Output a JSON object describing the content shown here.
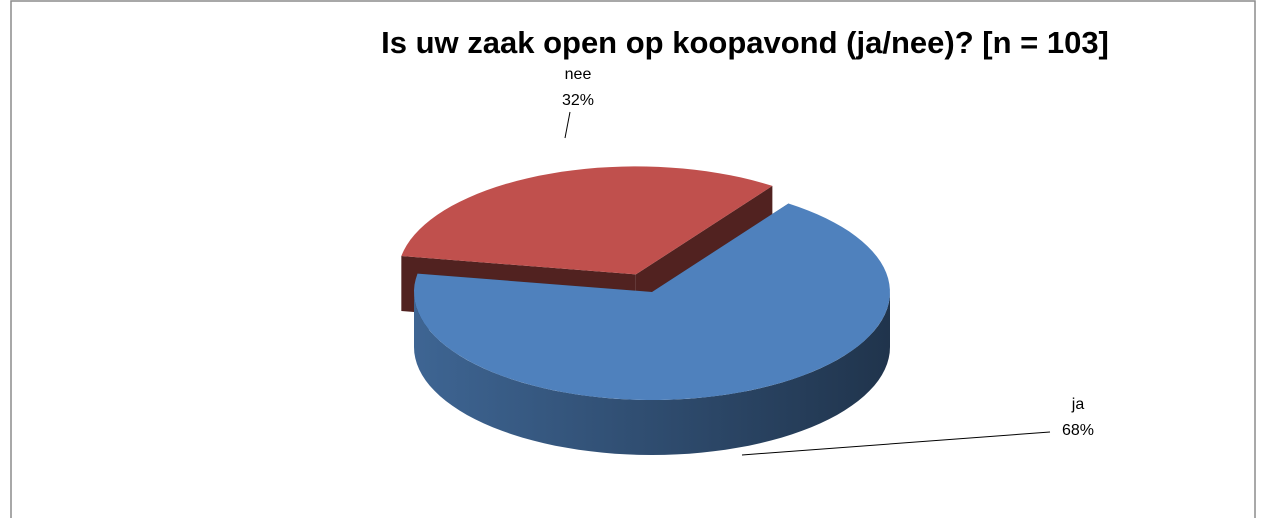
{
  "chart_data": {
    "type": "pie",
    "title": "Is uw zaak open op koopavond (ja/nee)? [n = 103]",
    "categories": [
      "ja",
      "nee"
    ],
    "values": [
      68,
      32
    ],
    "value_labels": [
      "68%",
      "32%"
    ],
    "colors": [
      "#4f81bd",
      "#c0504d"
    ],
    "exploded": "nee",
    "three_d": true
  }
}
